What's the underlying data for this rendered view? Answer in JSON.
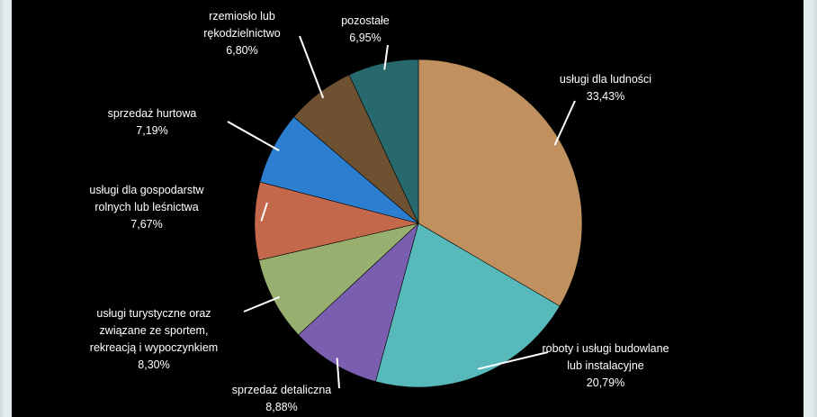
{
  "chart_data": {
    "type": "pie",
    "title": "",
    "slices": [
      {
        "label": [
          "usługi dla ludności"
        ],
        "pct_text": "33,43%",
        "value": 33.43,
        "color": "#c0915f"
      },
      {
        "label": [
          "roboty i usługi budowlane",
          "lub instalacyjne"
        ],
        "pct_text": "20,79%",
        "value": 20.79,
        "color": "#58b9bb"
      },
      {
        "label": [
          "sprzedaż detaliczna"
        ],
        "pct_text": "8,88%",
        "value": 8.88,
        "color": "#7a5fb0"
      },
      {
        "label": [
          "usługi turystyczne oraz",
          "związane ze sportem,",
          "rekreacją i  wypoczynkiem"
        ],
        "pct_text": "8,30%",
        "value": 8.3,
        "color": "#97b06f"
      },
      {
        "label": [
          "usługi dla gospodarstw",
          "rolnych lub leśnictwa"
        ],
        "pct_text": "7,67%",
        "value": 7.67,
        "color": "#c3684a"
      },
      {
        "label": [
          "sprzedaż hurtowa"
        ],
        "pct_text": "7,19%",
        "value": 7.19,
        "color": "#2c7fd0"
      },
      {
        "label": [
          "rzemiosło lub",
          "rękodzielnictwo"
        ],
        "pct_text": "6,80%",
        "value": 6.8,
        "color": "#6e5130"
      },
      {
        "label": [
          "pozostałe"
        ],
        "pct_text": "6,95%",
        "value": 6.95,
        "color": "#27696d"
      }
    ],
    "legend": "none",
    "start": "top, clockwise"
  }
}
